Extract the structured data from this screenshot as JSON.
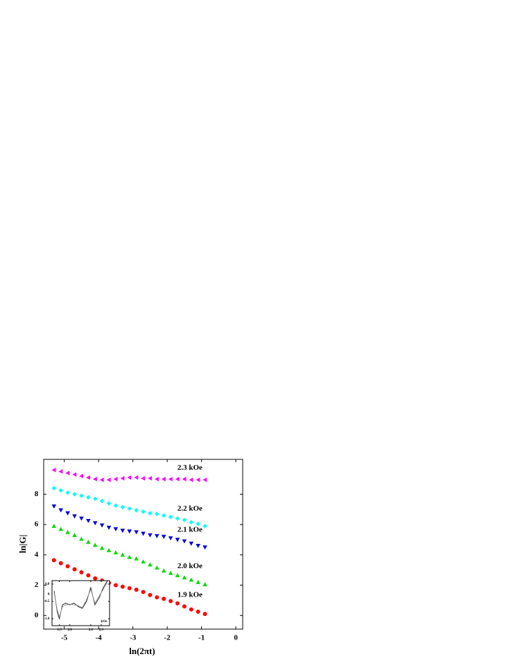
{
  "chart_data": [
    {
      "type": "scatter",
      "xlabel": "ln(2πt)",
      "ylabel": "ln|G|",
      "xlim": [
        -5.6,
        0.2
      ],
      "ylim": [
        -0.9,
        10.3
      ],
      "xticks": [
        -5,
        -4,
        -3,
        -2,
        -1,
        0
      ],
      "yticks": [
        0,
        2,
        4,
        6,
        8
      ],
      "x": [
        -5.3,
        -5.1,
        -4.9,
        -4.7,
        -4.5,
        -4.3,
        -4.1,
        -3.9,
        -3.7,
        -3.5,
        -3.3,
        -3.1,
        -2.9,
        -2.7,
        -2.5,
        -2.3,
        -2.1,
        -1.9,
        -1.7,
        -1.5,
        -1.3,
        -1.1,
        -0.9
      ],
      "series": [
        {
          "name": "1.9 kOe",
          "color": "#ff0000",
          "marker": "circle",
          "values": [
            3.65,
            3.45,
            3.25,
            3.05,
            2.85,
            2.65,
            2.45,
            2.3,
            2.15,
            2.0,
            1.9,
            1.8,
            1.7,
            1.55,
            1.35,
            1.2,
            1.1,
            0.95,
            0.8,
            0.6,
            0.4,
            0.25,
            0.1
          ]
        },
        {
          "name": "2.0 kOe",
          "color": "#00dd00",
          "marker": "triangle-up",
          "values": [
            5.9,
            5.7,
            5.5,
            5.3,
            5.05,
            4.85,
            4.65,
            4.45,
            4.3,
            4.15,
            4.0,
            3.85,
            3.75,
            3.55,
            3.35,
            3.15,
            2.95,
            2.8,
            2.65,
            2.5,
            2.35,
            2.2,
            2.05
          ]
        },
        {
          "name": "2.1 kOe",
          "color": "#0000dd",
          "marker": "triangle-down",
          "values": [
            7.2,
            6.95,
            6.75,
            6.55,
            6.4,
            6.25,
            6.1,
            5.95,
            5.8,
            5.7,
            5.6,
            5.55,
            5.5,
            5.4,
            5.3,
            5.25,
            5.2,
            5.1,
            5.0,
            4.9,
            4.75,
            4.6,
            4.5
          ]
        },
        {
          "name": "2.2 kOe",
          "color": "#00ffff",
          "marker": "diamond",
          "values": [
            8.4,
            8.25,
            8.1,
            8.0,
            7.9,
            7.8,
            7.7,
            7.55,
            7.4,
            7.25,
            7.15,
            7.05,
            6.95,
            6.85,
            6.75,
            6.7,
            6.6,
            6.5,
            6.4,
            6.3,
            6.15,
            6.05,
            5.9
          ]
        },
        {
          "name": "2.3 kOe",
          "color": "#ff00ff",
          "marker": "triangle-left",
          "values": [
            9.6,
            9.5,
            9.4,
            9.3,
            9.2,
            9.1,
            9.0,
            8.95,
            8.95,
            9.0,
            9.05,
            9.1,
            9.1,
            9.05,
            9.05,
            9.0,
            9.0,
            9.0,
            9.0,
            9.0,
            8.95,
            8.95,
            8.95
          ]
        }
      ]
    },
    {
      "type": "line",
      "xlabel": "kOe",
      "ylabel": "q",
      "xlim": [
        1.83,
        2.38
      ],
      "ylim": [
        -1.2,
        0.1
      ],
      "xticks": [
        1.9,
        {
          "value": 2.0,
          "label": "2.0"
        },
        2.2,
        2.3
      ],
      "yticks": [
        {
          "value": 0,
          "label": "0.0"
        },
        -0.5,
        {
          "value": -1,
          "label": "-1.0"
        }
      ],
      "x": [
        1.85,
        1.88,
        1.9,
        1.93,
        1.96,
        2.0,
        2.04,
        2.08,
        2.12,
        2.16,
        2.2,
        2.24,
        2.28,
        2.32,
        2.36
      ],
      "series": [
        {
          "color": "#000000",
          "values": [
            -0.2,
            -0.8,
            -1.0,
            -0.6,
            -0.55,
            -0.6,
            -0.55,
            -0.65,
            -0.7,
            -0.5,
            -0.1,
            -0.6,
            -0.4,
            -0.1,
            0.1
          ]
        },
        {
          "color": "#888888",
          "values": [
            -0.25,
            -0.75,
            -0.95,
            -0.65,
            -0.6,
            -0.58,
            -0.6,
            -0.62,
            -0.68,
            -0.45,
            -0.15,
            -0.55,
            -0.35,
            -0.15,
            0.05
          ]
        }
      ]
    }
  ]
}
